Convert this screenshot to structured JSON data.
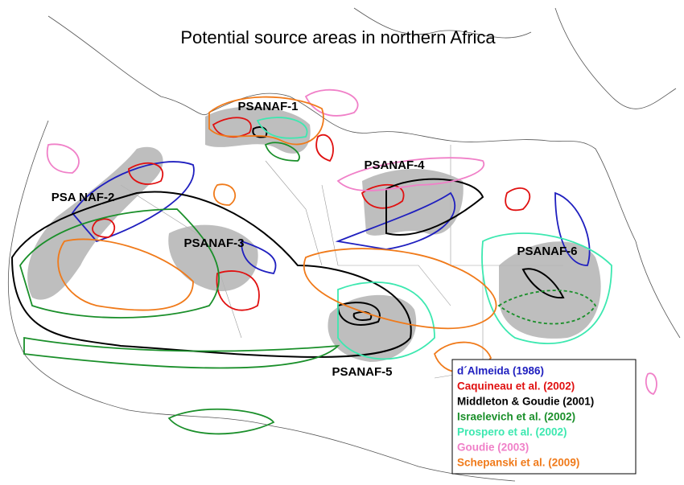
{
  "header": {
    "title": "Potential source areas in northern Africa"
  },
  "regions": [
    {
      "label": "PSANAF-1"
    },
    {
      "label": "PSA NAF-2"
    },
    {
      "label": "PSANAF-3"
    },
    {
      "label": "PSANAF-4"
    },
    {
      "label": "PSANAF-5"
    },
    {
      "label": "PSANAF-6"
    }
  ],
  "legend": [
    {
      "label": "d´Almeida (1986)",
      "color": "#1f1fbf"
    },
    {
      "label": "Caquineau et al. (2002)",
      "color": "#e01010"
    },
    {
      "label": "Middleton & Goudie (2001)",
      "color": "#000000"
    },
    {
      "label": "Israelevich et al. (2002)",
      "color": "#1a8f2a"
    },
    {
      "label": "Prospero et al. (2002)",
      "color": "#3de8b0"
    },
    {
      "label": "Goudie (2003)",
      "color": "#f080c8"
    },
    {
      "label": "Schepanski et al. (2009)",
      "color": "#f07a1a"
    }
  ]
}
